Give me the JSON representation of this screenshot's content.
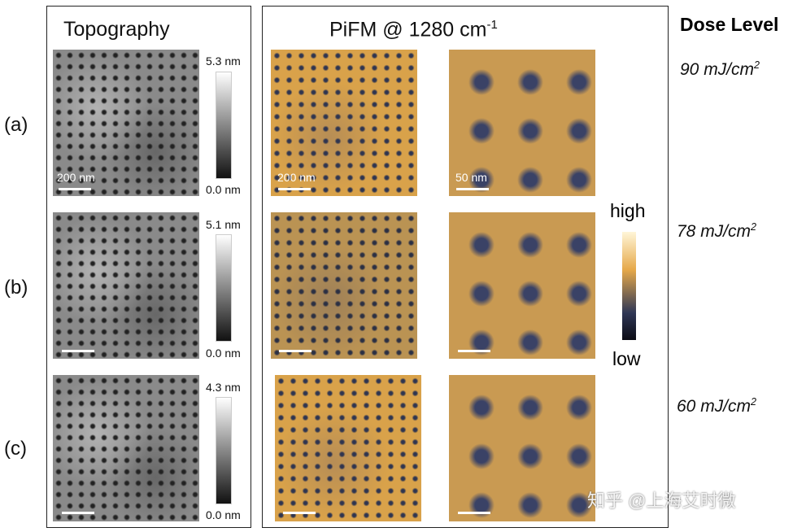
{
  "titles": {
    "topography": "Topography",
    "pifm": "PiFM @ 1280 cm",
    "pifm_sup": "-1",
    "dose": "Dose Level"
  },
  "rows": [
    {
      "label": "(a)",
      "topo_max": "5.3 nm",
      "topo_min": "0.0 nm",
      "dose": "90 mJ/cm",
      "scale_topo": "200 nm",
      "scale_pifm": "200 nm",
      "scale_zoom": "50 nm"
    },
    {
      "label": "(b)",
      "topo_max": "5.1 nm",
      "topo_min": "0.0 nm",
      "dose": "78 mJ/cm"
    },
    {
      "label": "(c)",
      "topo_max": "4.3 nm",
      "topo_min": "0.0 nm",
      "dose": "60 mJ/cm"
    }
  ],
  "dose_sup": "2",
  "pifm_colorbar": {
    "high": "high",
    "low": "low"
  },
  "watermark": "知乎 @上海艾时微"
}
